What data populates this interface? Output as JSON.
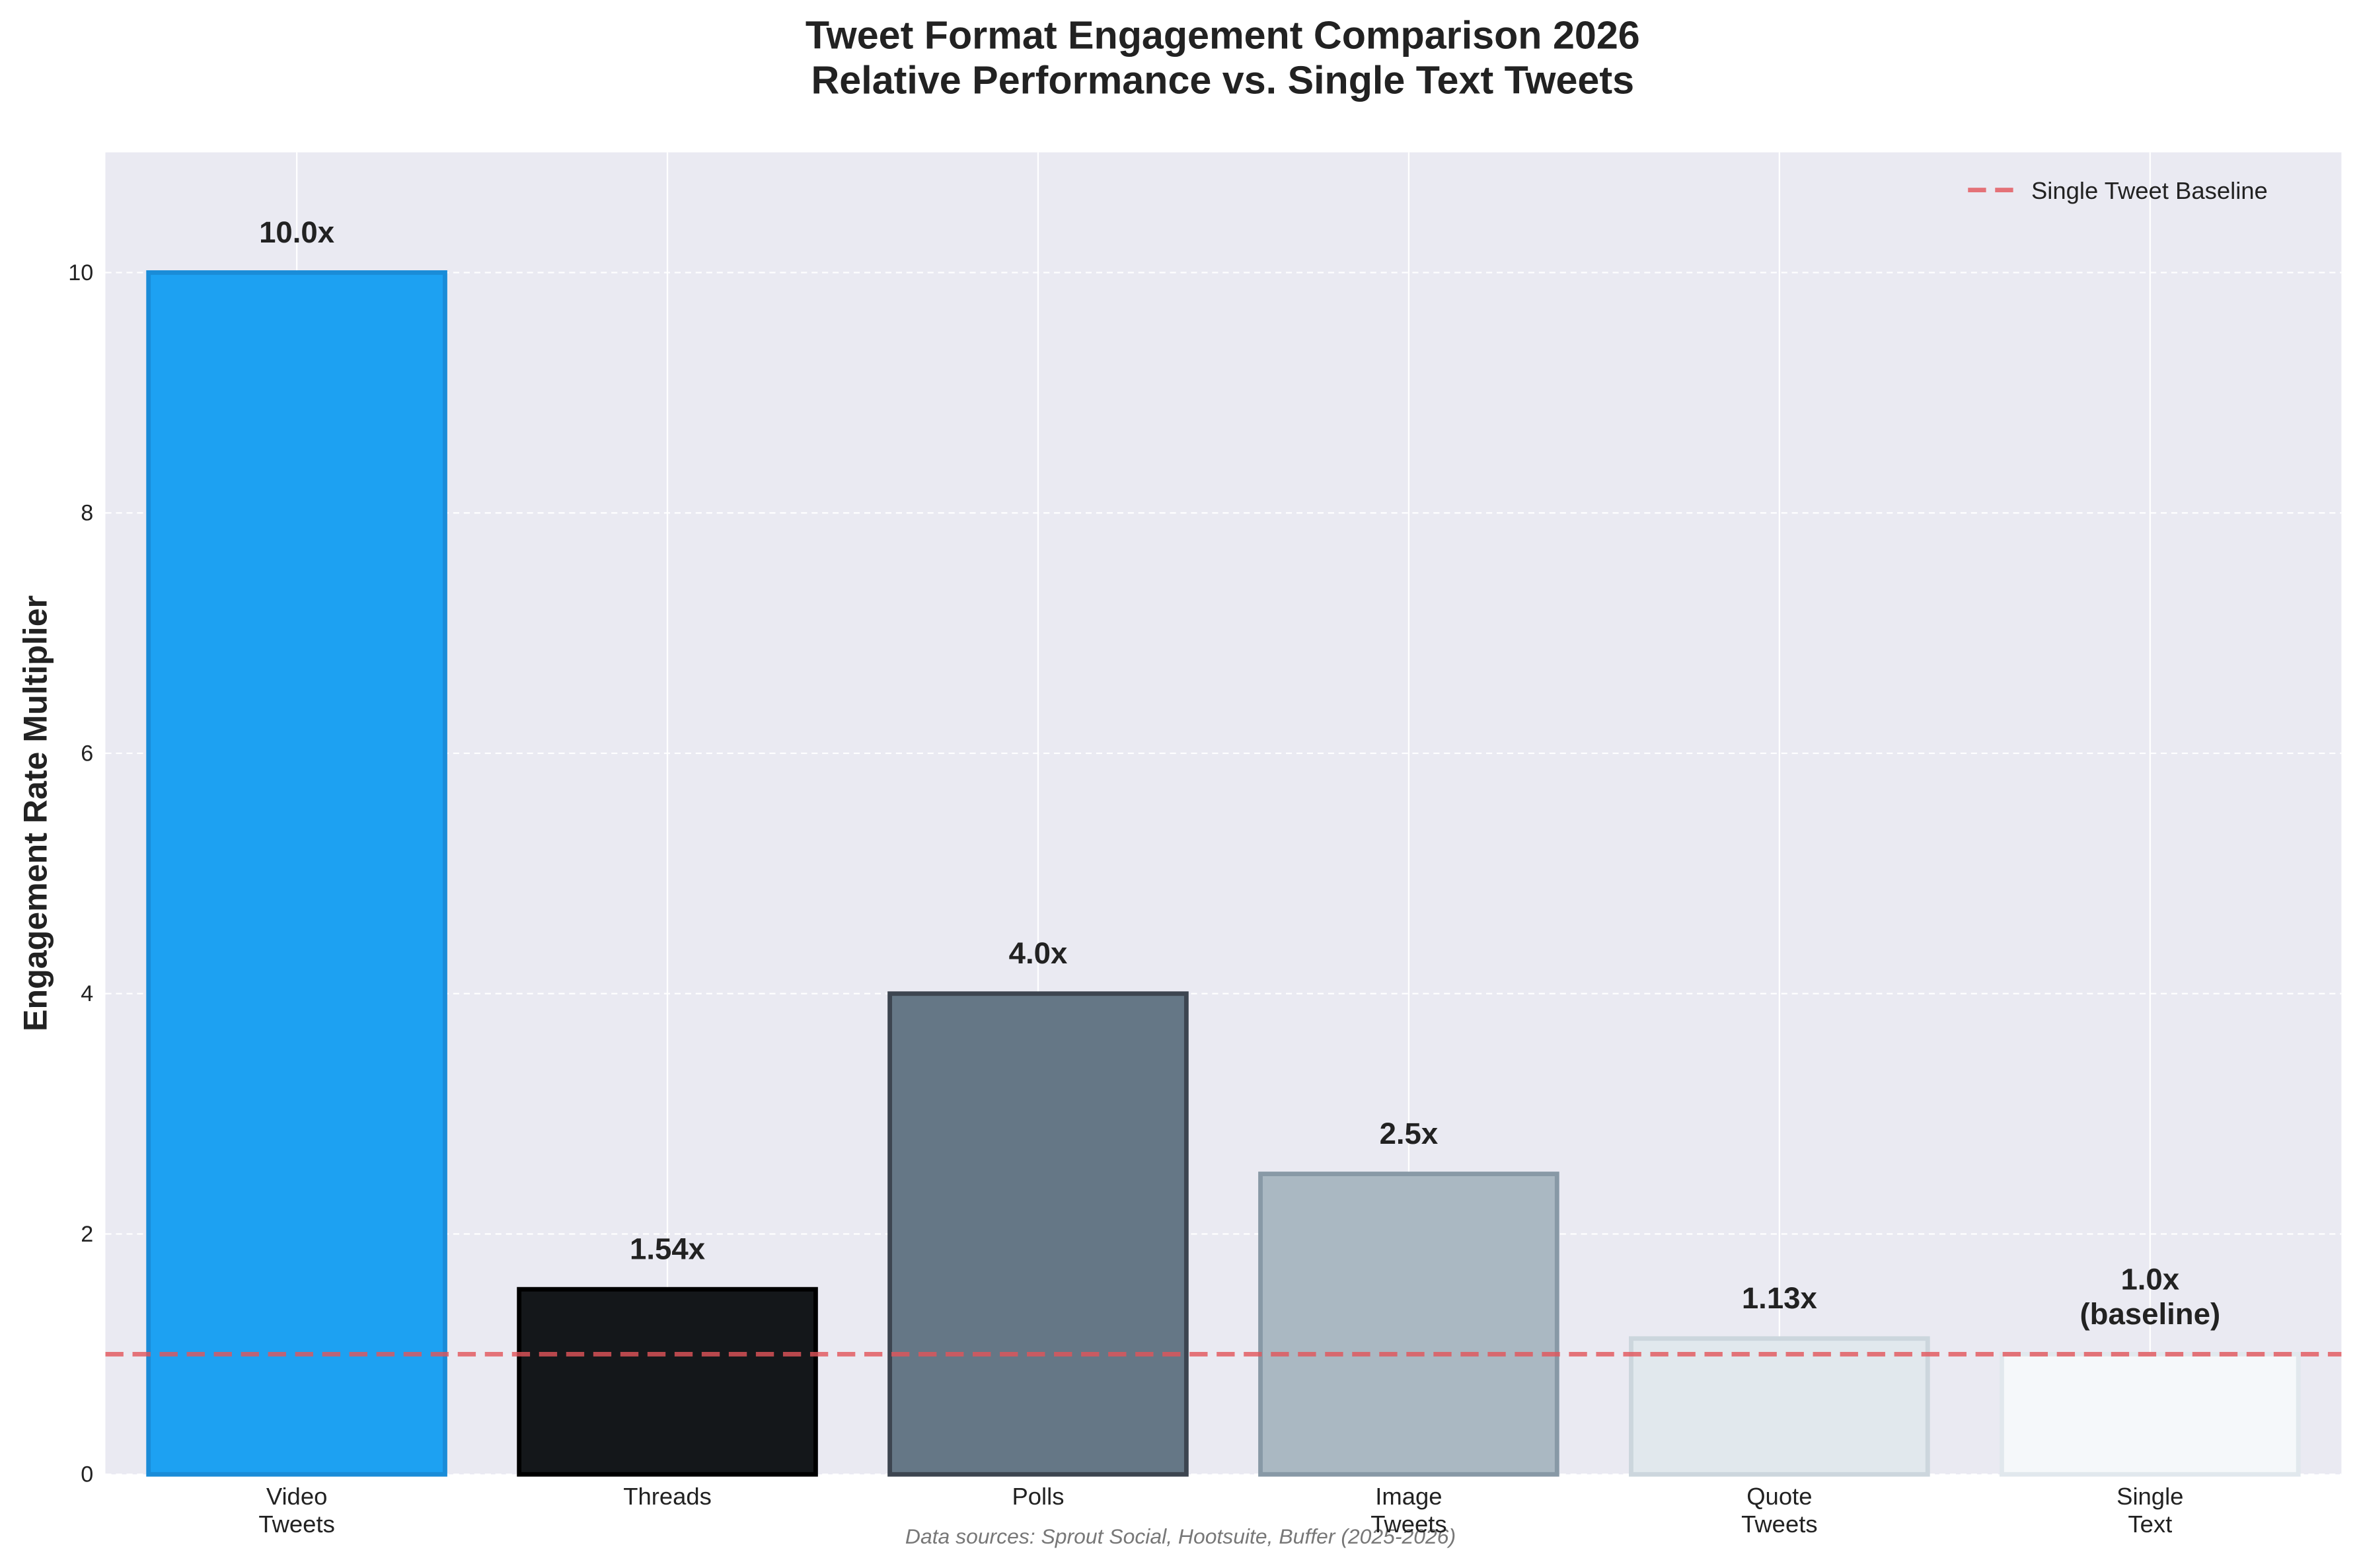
{
  "chart_data": {
    "type": "bar",
    "title": "Tweet Format Engagement Comparison 2026\nRelative Performance vs. Single Text Tweets",
    "ylabel": "Engagement Rate Multiplier",
    "categories": [
      "Video\nTweets",
      "Threads",
      "Polls",
      "Image\nTweets",
      "Quote\nTweets",
      "Single\nText"
    ],
    "values": [
      10.0,
      1.54,
      4.0,
      2.5,
      1.13,
      1.0
    ],
    "value_labels": [
      "10.0x",
      "1.54x",
      "4.0x",
      "2.5x",
      "1.13x",
      "1.0x\n(baseline)"
    ],
    "colors": [
      "#1da1f2",
      "#14171a",
      "#657786",
      "#aab8c2",
      "#e1e8ed",
      "#f5f8fa"
    ],
    "edgecolors": [
      "#1a8cd8",
      "#000000",
      "#3d4550",
      "#8899a6",
      "#ccd6dd",
      "#e1e8ed"
    ],
    "ylim": [
      0,
      11
    ],
    "yticks": [
      0,
      2,
      4,
      6,
      8,
      10
    ],
    "grid": true,
    "baseline": {
      "value": 1,
      "label": "Single Tweet Baseline",
      "color": "#e3555a"
    },
    "legend": "upper right",
    "note": "Data sources: Sprout Social, Hootsuite, Buffer (2025-2026)"
  }
}
